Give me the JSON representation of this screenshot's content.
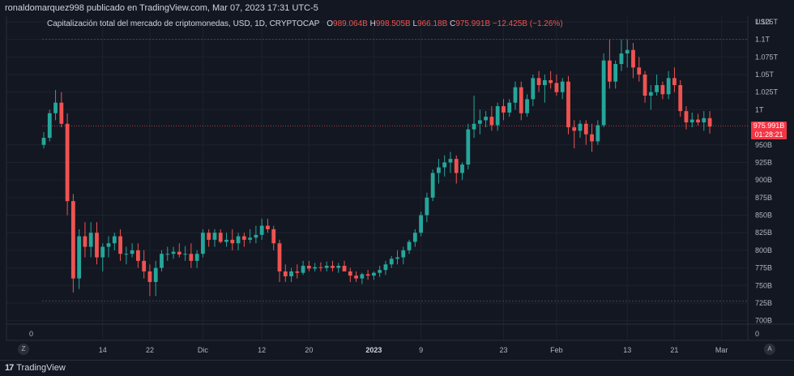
{
  "header": {
    "attribution": "ronaldomarquez998 publicado en TradingView.com, Mar 07, 2023 17:31 UTC-5"
  },
  "legend": {
    "title": "Capitalización total del mercado de criptomonedas, USD, 1D, CRYPTOCAP",
    "o_key": "O",
    "o_val": "989.064B",
    "h_key": "H",
    "h_val": "998.505B",
    "l_key": "L",
    "l_val": "966.18B",
    "c_key": "C",
    "c_val": "975.991B",
    "change": "−12.425B (−1.26%)"
  },
  "price_tag": {
    "price": "975.991B",
    "countdown": "01:28:21"
  },
  "axis_buttons": {
    "left": "Z",
    "right": "A"
  },
  "footer": {
    "logo_mark": "17",
    "brand": "TradingView"
  },
  "colors": {
    "up": "#26a69a",
    "down": "#ef5350",
    "background": "#131722",
    "grid": "#1e222d"
  },
  "chart_data": {
    "type": "candlestick",
    "currency_label": "USD",
    "y_ticks": [
      "1.125T",
      "1.1T",
      "1.075T",
      "1.05T",
      "1.025T",
      "1T",
      "950B",
      "925B",
      "900B",
      "875B",
      "850B",
      "825B",
      "800B",
      "775B",
      "750B",
      "725B",
      "700B"
    ],
    "y_tick_values": [
      1125,
      1100,
      1075,
      1050,
      1025,
      1000,
      950,
      925,
      900,
      875,
      850,
      825,
      800,
      775,
      750,
      725,
      700
    ],
    "volume_axis_label": "0",
    "ylim": [
      695,
      1133
    ],
    "x_ticks": [
      {
        "label": "14",
        "index": 10
      },
      {
        "label": "22",
        "index": 18
      },
      {
        "label": "Dic",
        "index": 27
      },
      {
        "label": "12",
        "index": 37
      },
      {
        "label": "20",
        "index": 45
      },
      {
        "label": "2023",
        "index": 56
      },
      {
        "label": "9",
        "index": 64
      },
      {
        "label": "23",
        "index": 78
      },
      {
        "label": "Feb",
        "index": 87
      },
      {
        "label": "13",
        "index": 99
      },
      {
        "label": "21",
        "index": 107
      },
      {
        "label": "Mar",
        "index": 115
      }
    ],
    "reference_lines": [
      1100,
      977,
      728
    ],
    "candles": [
      [
        950,
        968,
        945,
        960
      ],
      [
        960,
        1000,
        955,
        995
      ],
      [
        995,
        1028,
        985,
        1010
      ],
      [
        1010,
        1025,
        975,
        980
      ],
      [
        980,
        995,
        850,
        870
      ],
      [
        870,
        880,
        740,
        760
      ],
      [
        760,
        830,
        745,
        820
      ],
      [
        820,
        840,
        790,
        805
      ],
      [
        805,
        840,
        790,
        825
      ],
      [
        825,
        840,
        780,
        790
      ],
      [
        790,
        810,
        770,
        805
      ],
      [
        805,
        820,
        790,
        810
      ],
      [
        810,
        825,
        800,
        820
      ],
      [
        820,
        830,
        785,
        795
      ],
      [
        795,
        805,
        780,
        795
      ],
      [
        795,
        810,
        790,
        800
      ],
      [
        800,
        810,
        775,
        785
      ],
      [
        785,
        800,
        760,
        770
      ],
      [
        770,
        780,
        735,
        755
      ],
      [
        755,
        785,
        735,
        775
      ],
      [
        775,
        800,
        770,
        795
      ],
      [
        795,
        805,
        785,
        795
      ],
      [
        795,
        805,
        788,
        798
      ],
      [
        798,
        810,
        790,
        794
      ],
      [
        794,
        806,
        785,
        795
      ],
      [
        795,
        810,
        775,
        785
      ],
      [
        785,
        800,
        775,
        795
      ],
      [
        795,
        830,
        790,
        825
      ],
      [
        825,
        830,
        805,
        815
      ],
      [
        815,
        830,
        805,
        825
      ],
      [
        825,
        830,
        810,
        812
      ],
      [
        812,
        825,
        805,
        815
      ],
      [
        815,
        830,
        800,
        810
      ],
      [
        810,
        825,
        800,
        820
      ],
      [
        820,
        825,
        805,
        815
      ],
      [
        815,
        830,
        810,
        818
      ],
      [
        818,
        835,
        810,
        822
      ],
      [
        822,
        845,
        815,
        835
      ],
      [
        835,
        845,
        825,
        830
      ],
      [
        830,
        835,
        800,
        810
      ],
      [
        810,
        815,
        755,
        770
      ],
      [
        770,
        780,
        755,
        763
      ],
      [
        763,
        775,
        755,
        770
      ],
      [
        770,
        780,
        760,
        768
      ],
      [
        768,
        785,
        765,
        778
      ],
      [
        778,
        785,
        770,
        774
      ],
      [
        774,
        782,
        770,
        776
      ],
      [
        776,
        783,
        770,
        775
      ],
      [
        775,
        784,
        770,
        778
      ],
      [
        778,
        785,
        770,
        775
      ],
      [
        775,
        782,
        768,
        778
      ],
      [
        778,
        785,
        770,
        770
      ],
      [
        770,
        775,
        755,
        764
      ],
      [
        764,
        770,
        755,
        760
      ],
      [
        760,
        768,
        752,
        766
      ],
      [
        766,
        772,
        758,
        764
      ],
      [
        764,
        770,
        758,
        768
      ],
      [
        768,
        778,
        762,
        772
      ],
      [
        772,
        785,
        765,
        780
      ],
      [
        780,
        792,
        775,
        788
      ],
      [
        788,
        800,
        780,
        790
      ],
      [
        790,
        805,
        780,
        800
      ],
      [
        800,
        815,
        795,
        812
      ],
      [
        812,
        830,
        805,
        825
      ],
      [
        825,
        855,
        820,
        850
      ],
      [
        850,
        882,
        840,
        875
      ],
      [
        875,
        915,
        870,
        910
      ],
      [
        910,
        930,
        895,
        918
      ],
      [
        918,
        935,
        905,
        925
      ],
      [
        925,
        940,
        910,
        930
      ],
      [
        930,
        935,
        895,
        910
      ],
      [
        910,
        925,
        900,
        922
      ],
      [
        922,
        980,
        915,
        972
      ],
      [
        972,
        1020,
        960,
        980
      ],
      [
        980,
        1000,
        965,
        985
      ],
      [
        985,
        998,
        975,
        990
      ],
      [
        990,
        1005,
        970,
        978
      ],
      [
        978,
        1010,
        970,
        1005
      ],
      [
        1005,
        1015,
        985,
        996
      ],
      [
        996,
        1015,
        990,
        1010
      ],
      [
        1010,
        1040,
        1000,
        1032
      ],
      [
        1032,
        1040,
        985,
        995
      ],
      [
        995,
        1022,
        990,
        1015
      ],
      [
        1015,
        1050,
        1005,
        1045
      ],
      [
        1045,
        1055,
        1025,
        1035
      ],
      [
        1035,
        1050,
        1010,
        1042
      ],
      [
        1042,
        1055,
        1030,
        1038
      ],
      [
        1038,
        1050,
        1020,
        1025
      ],
      [
        1025,
        1045,
        1015,
        1040
      ],
      [
        1040,
        1048,
        965,
        975
      ],
      [
        975,
        985,
        945,
        970
      ],
      [
        970,
        985,
        960,
        980
      ],
      [
        980,
        985,
        950,
        965
      ],
      [
        965,
        980,
        940,
        955
      ],
      [
        955,
        985,
        950,
        978
      ],
      [
        978,
        1080,
        975,
        1070
      ],
      [
        1070,
        1100,
        1030,
        1040
      ],
      [
        1040,
        1070,
        1030,
        1065
      ],
      [
        1065,
        1100,
        1055,
        1080
      ],
      [
        1080,
        1100,
        1060,
        1085
      ],
      [
        1085,
        1095,
        1045,
        1060
      ],
      [
        1060,
        1075,
        1040,
        1050
      ],
      [
        1050,
        1055,
        1010,
        1020
      ],
      [
        1020,
        1035,
        1000,
        1025
      ],
      [
        1025,
        1050,
        1020,
        1035
      ],
      [
        1035,
        1040,
        1015,
        1022
      ],
      [
        1022,
        1055,
        1015,
        1045
      ],
      [
        1045,
        1060,
        1025,
        1035
      ],
      [
        1035,
        1042,
        990,
        998
      ],
      [
        998,
        1005,
        972,
        982
      ],
      [
        982,
        996,
        975,
        986
      ],
      [
        986,
        994,
        978,
        982
      ],
      [
        982,
        998,
        970,
        988
      ],
      [
        988,
        998,
        966,
        976
      ]
    ],
    "last_price": 975.991,
    "last_price_label": "975.991B"
  }
}
